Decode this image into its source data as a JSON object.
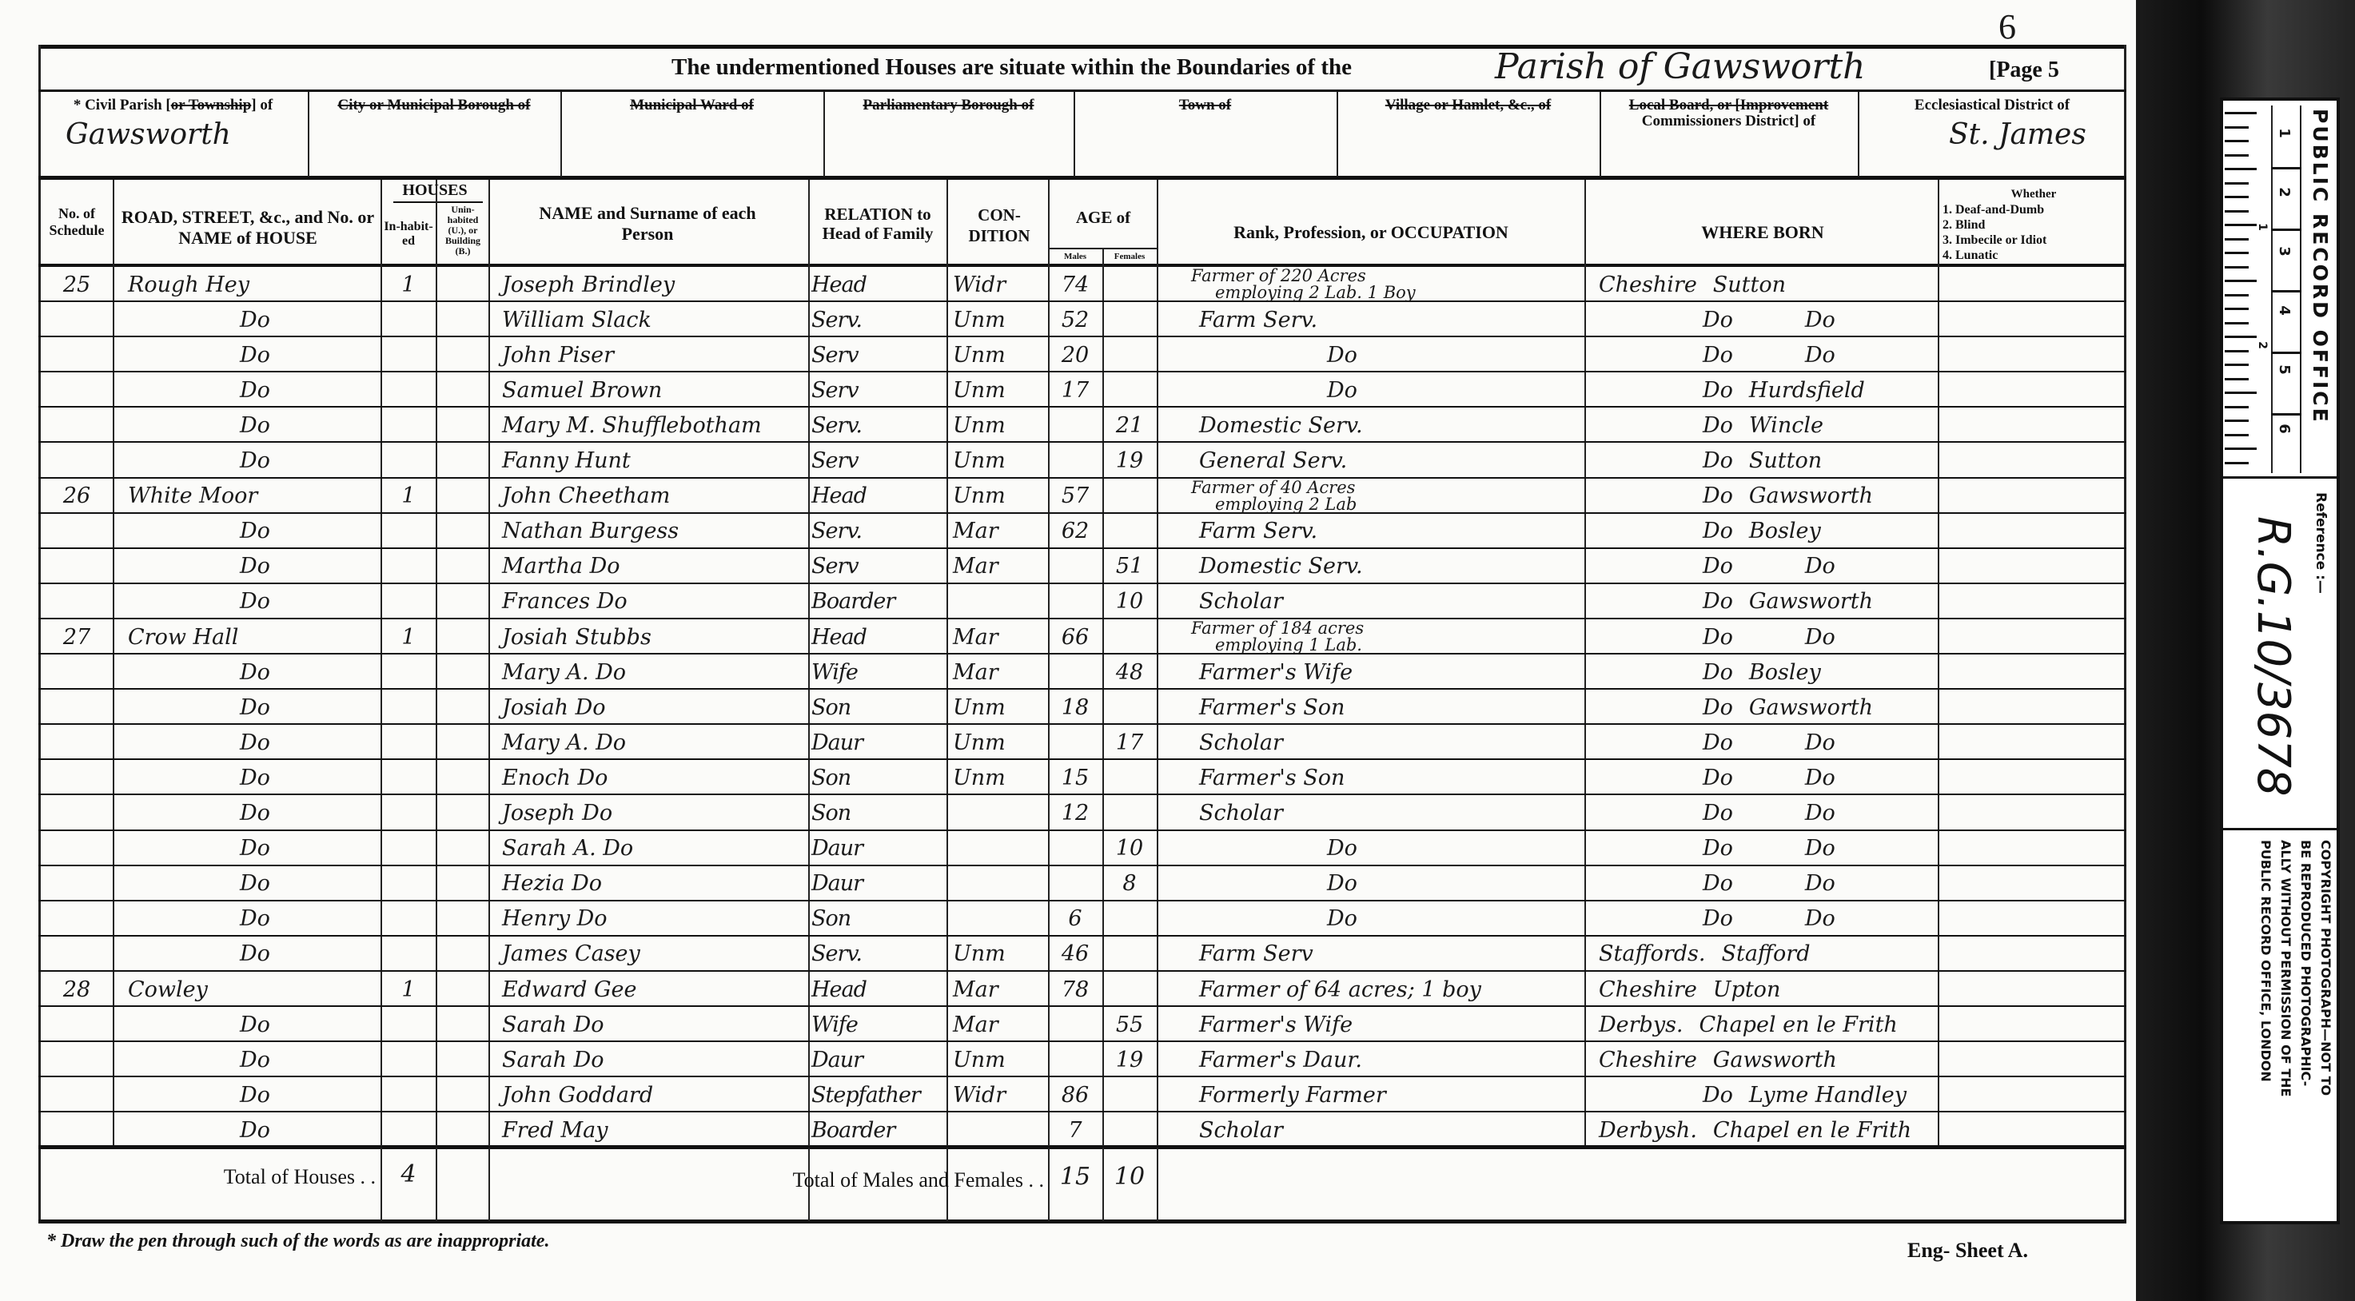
{
  "page_number_mark": "6",
  "title": {
    "prefix": "The undermentioned Houses are situate within the Boundaries of the",
    "handwritten": "Parish of Gawsworth",
    "page": "[Page 5"
  },
  "districts": [
    {
      "label_pre": "* Civil Parish [",
      "label_struck": "or Township",
      "label_post": "] of",
      "value": "Gawsworth"
    },
    {
      "label_struck": "City or Municipal Borough of",
      "value": ""
    },
    {
      "label_struck": "Municipal Ward of",
      "value": ""
    },
    {
      "label_struck": "Parliamentary Borough of",
      "value": ""
    },
    {
      "label_struck": "Town of",
      "value": ""
    },
    {
      "label_struck": "Village or Hamlet, &c., of",
      "value": ""
    },
    {
      "label_struck": "Local Board, or [Improvement",
      "label_post": "Commissioners District] of",
      "value": ""
    },
    {
      "label_pre": "Ecclesiastical District of",
      "value": "St. James"
    }
  ],
  "columns": {
    "schedule": "No. of Schedule",
    "road": "ROAD, STREET, &c., and No. or NAME of HOUSE",
    "houses": "HOUSES",
    "inhabited": "In-habit-ed",
    "uninhabited": "Unin-habited (U.), or Building (B.)",
    "name": "NAME and Surname of each Person",
    "relation": "RELATION to Head of Family",
    "condition": "CON-DITION",
    "age": "AGE of",
    "males": "Males",
    "females": "Females",
    "occupation": "Rank, Profession, or OCCUPATION",
    "where_born": "WHERE BORN",
    "whether_title": "Whether",
    "whether_items": [
      "1. Deaf-and-Dumb",
      "2. Blind",
      "3. Imbecile or Idiot",
      "4. Lunatic"
    ]
  },
  "rows": [
    {
      "schedule": "25",
      "road": "Rough Hey",
      "inhabited": "1",
      "name": "Joseph Brindley",
      "relation": "Head",
      "condition": "Widr",
      "male_age": "74",
      "female_age": "",
      "occupation": [
        "Farmer of 220 Acres",
        "employing 2 Lab. 1 Boy"
      ],
      "born_county": "Cheshire",
      "born_place": "Sutton"
    },
    {
      "schedule": "",
      "road": "Do",
      "inhabited": "",
      "name": "William Slack",
      "relation": "Serv.",
      "condition": "Unm",
      "male_age": "52",
      "female_age": "",
      "occupation": [
        "Farm Serv."
      ],
      "born_county": "Do",
      "born_place": "Do"
    },
    {
      "schedule": "",
      "road": "Do",
      "inhabited": "",
      "name": "John Piser",
      "relation": "Serv",
      "condition": "Unm",
      "male_age": "20",
      "female_age": "",
      "occupation": [
        "Do"
      ],
      "born_county": "Do",
      "born_place": "Do"
    },
    {
      "schedule": "",
      "road": "Do",
      "inhabited": "",
      "name": "Samuel Brown",
      "relation": "Serv",
      "condition": "Unm",
      "male_age": "17",
      "female_age": "",
      "occupation": [
        "Do"
      ],
      "born_county": "Do",
      "born_place": "Hurdsfield"
    },
    {
      "schedule": "",
      "road": "Do",
      "inhabited": "",
      "name": "Mary M. Shufflebotham",
      "relation": "Serv.",
      "condition": "Unm",
      "male_age": "",
      "female_age": "21",
      "occupation": [
        "Domestic Serv."
      ],
      "born_county": "Do",
      "born_place": "Wincle"
    },
    {
      "schedule": "",
      "road": "Do",
      "inhabited": "",
      "name": "Fanny Hunt",
      "relation": "Serv",
      "condition": "Unm",
      "male_age": "",
      "female_age": "19",
      "occupation": [
        "General Serv."
      ],
      "born_county": "Do",
      "born_place": "Sutton"
    },
    {
      "schedule": "26",
      "road": "White Moor",
      "inhabited": "1",
      "name": "John Cheetham",
      "relation": "Head",
      "condition": "Unm",
      "male_age": "57",
      "female_age": "",
      "occupation": [
        "Farmer of 40 Acres",
        "employing 2 Lab"
      ],
      "born_county": "Do",
      "born_place": "Gawsworth"
    },
    {
      "schedule": "",
      "road": "Do",
      "inhabited": "",
      "name": "Nathan Burgess",
      "relation": "Serv.",
      "condition": "Mar",
      "male_age": "62",
      "female_age": "",
      "occupation": [
        "Farm Serv."
      ],
      "born_county": "Do",
      "born_place": "Bosley"
    },
    {
      "schedule": "",
      "road": "Do",
      "inhabited": "",
      "name": "Martha Do",
      "relation": "Serv",
      "condition": "Mar",
      "male_age": "",
      "female_age": "51",
      "occupation": [
        "Domestic Serv."
      ],
      "born_county": "Do",
      "born_place": "Do"
    },
    {
      "schedule": "",
      "road": "Do",
      "inhabited": "",
      "name": "Frances Do",
      "relation": "Boarder",
      "condition": "",
      "male_age": "",
      "female_age": "10",
      "occupation": [
        "Scholar"
      ],
      "born_county": "Do",
      "born_place": "Gawsworth"
    },
    {
      "schedule": "27",
      "road": "Crow Hall",
      "inhabited": "1",
      "name": "Josiah Stubbs",
      "relation": "Head",
      "condition": "Mar",
      "male_age": "66",
      "female_age": "",
      "occupation": [
        "Farmer of 184 acres",
        "employing 1 Lab."
      ],
      "born_county": "Do",
      "born_place": "Do"
    },
    {
      "schedule": "",
      "road": "Do",
      "inhabited": "",
      "name": "Mary A. Do",
      "relation": "Wife",
      "condition": "Mar",
      "male_age": "",
      "female_age": "48",
      "occupation": [
        "Farmer's Wife"
      ],
      "born_county": "Do",
      "born_place": "Bosley"
    },
    {
      "schedule": "",
      "road": "Do",
      "inhabited": "",
      "name": "Josiah Do",
      "relation": "Son",
      "condition": "Unm",
      "male_age": "18",
      "female_age": "",
      "occupation": [
        "Farmer's Son"
      ],
      "born_county": "Do",
      "born_place": "Gawsworth"
    },
    {
      "schedule": "",
      "road": "Do",
      "inhabited": "",
      "name": "Mary A. Do",
      "relation": "Daur",
      "condition": "Unm",
      "male_age": "",
      "female_age": "17",
      "occupation": [
        "Scholar"
      ],
      "born_county": "Do",
      "born_place": "Do"
    },
    {
      "schedule": "",
      "road": "Do",
      "inhabited": "",
      "name": "Enoch Do",
      "relation": "Son",
      "condition": "Unm",
      "male_age": "15",
      "female_age": "",
      "occupation": [
        "Farmer's Son"
      ],
      "born_county": "Do",
      "born_place": "Do"
    },
    {
      "schedule": "",
      "road": "Do",
      "inhabited": "",
      "name": "Joseph Do",
      "relation": "Son",
      "condition": "",
      "male_age": "12",
      "female_age": "",
      "occupation": [
        "Scholar"
      ],
      "born_county": "Do",
      "born_place": "Do"
    },
    {
      "schedule": "",
      "road": "Do",
      "inhabited": "",
      "name": "Sarah A. Do",
      "relation": "Daur",
      "condition": "",
      "male_age": "",
      "female_age": "10",
      "occupation": [
        "Do"
      ],
      "born_county": "Do",
      "born_place": "Do"
    },
    {
      "schedule": "",
      "road": "Do",
      "inhabited": "",
      "name": "Hezia Do",
      "relation": "Daur",
      "condition": "",
      "male_age": "",
      "female_age": "8",
      "occupation": [
        "Do"
      ],
      "born_county": "Do",
      "born_place": "Do"
    },
    {
      "schedule": "",
      "road": "Do",
      "inhabited": "",
      "name": "Henry Do",
      "relation": "Son",
      "condition": "",
      "male_age": "6",
      "female_age": "",
      "occupation": [
        "Do"
      ],
      "born_county": "Do",
      "born_place": "Do"
    },
    {
      "schedule": "",
      "road": "Do",
      "inhabited": "",
      "name": "James Casey",
      "relation": "Serv.",
      "condition": "Unm",
      "male_age": "46",
      "female_age": "",
      "occupation": [
        "Farm Serv"
      ],
      "born_county": "Staffords.",
      "born_place": "Stafford"
    },
    {
      "schedule": "28",
      "road": "Cowley",
      "inhabited": "1",
      "name": "Edward Gee",
      "relation": "Head",
      "condition": "Mar",
      "male_age": "78",
      "female_age": "",
      "occupation": [
        "Farmer of 64 acres; 1 boy"
      ],
      "born_county": "Cheshire",
      "born_place": "Upton"
    },
    {
      "schedule": "",
      "road": "Do",
      "inhabited": "",
      "name": "Sarah Do",
      "relation": "Wife",
      "condition": "Mar",
      "male_age": "",
      "female_age": "55",
      "occupation": [
        "Farmer's Wife"
      ],
      "born_county": "Derbys.",
      "born_place": "Chapel en le Frith"
    },
    {
      "schedule": "",
      "road": "Do",
      "inhabited": "",
      "name": "Sarah Do",
      "relation": "Daur",
      "condition": "Unm",
      "male_age": "",
      "female_age": "19",
      "occupation": [
        "Farmer's Daur."
      ],
      "born_county": "Cheshire",
      "born_place": "Gawsworth"
    },
    {
      "schedule": "",
      "road": "Do",
      "inhabited": "",
      "name": "John Goddard",
      "relation": "Stepfather",
      "condition": "Widr",
      "male_age": "86",
      "female_age": "",
      "occupation": [
        "Formerly Farmer"
      ],
      "born_county": "Do",
      "born_place": "Lyme Handley"
    },
    {
      "schedule": "",
      "road": "Do",
      "inhabited": "",
      "name": "Fred May",
      "relation": "Boarder",
      "condition": "",
      "male_age": "7",
      "female_age": "",
      "occupation": [
        "Scholar"
      ],
      "born_county": "Derbysh.",
      "born_place": "Chapel en le Frith"
    }
  ],
  "totals": {
    "houses_label": "Total of Houses . .",
    "houses_value": "4",
    "persons_label": "Total of Males and Females . .",
    "males": "15",
    "females": "10"
  },
  "footnote": "* Draw the pen through such of the words as are inappropriate.",
  "sheet_label": "Eng- Sheet A.",
  "reference_card": {
    "office": "PUBLIC RECORD OFFICE",
    "scale_numbers": [
      "1",
      "2",
      "3",
      "4",
      "5",
      "6"
    ],
    "inch_numbers": [
      "1",
      "2"
    ],
    "reference_label": "Reference :—",
    "reference": "R.G.10/3678",
    "copyright": [
      "COPYRIGHT PHOTOGRAPH—NOT TO",
      "BE REPRODUCED PHOTOGRAPHIC-",
      "ALLY WITHOUT PERMISSION OF THE",
      "PUBLIC RECORD OFFICE, LONDON"
    ]
  },
  "colors": {
    "paper": "#fbfbf9",
    "ink": "#141414",
    "backing": "#111111"
  }
}
